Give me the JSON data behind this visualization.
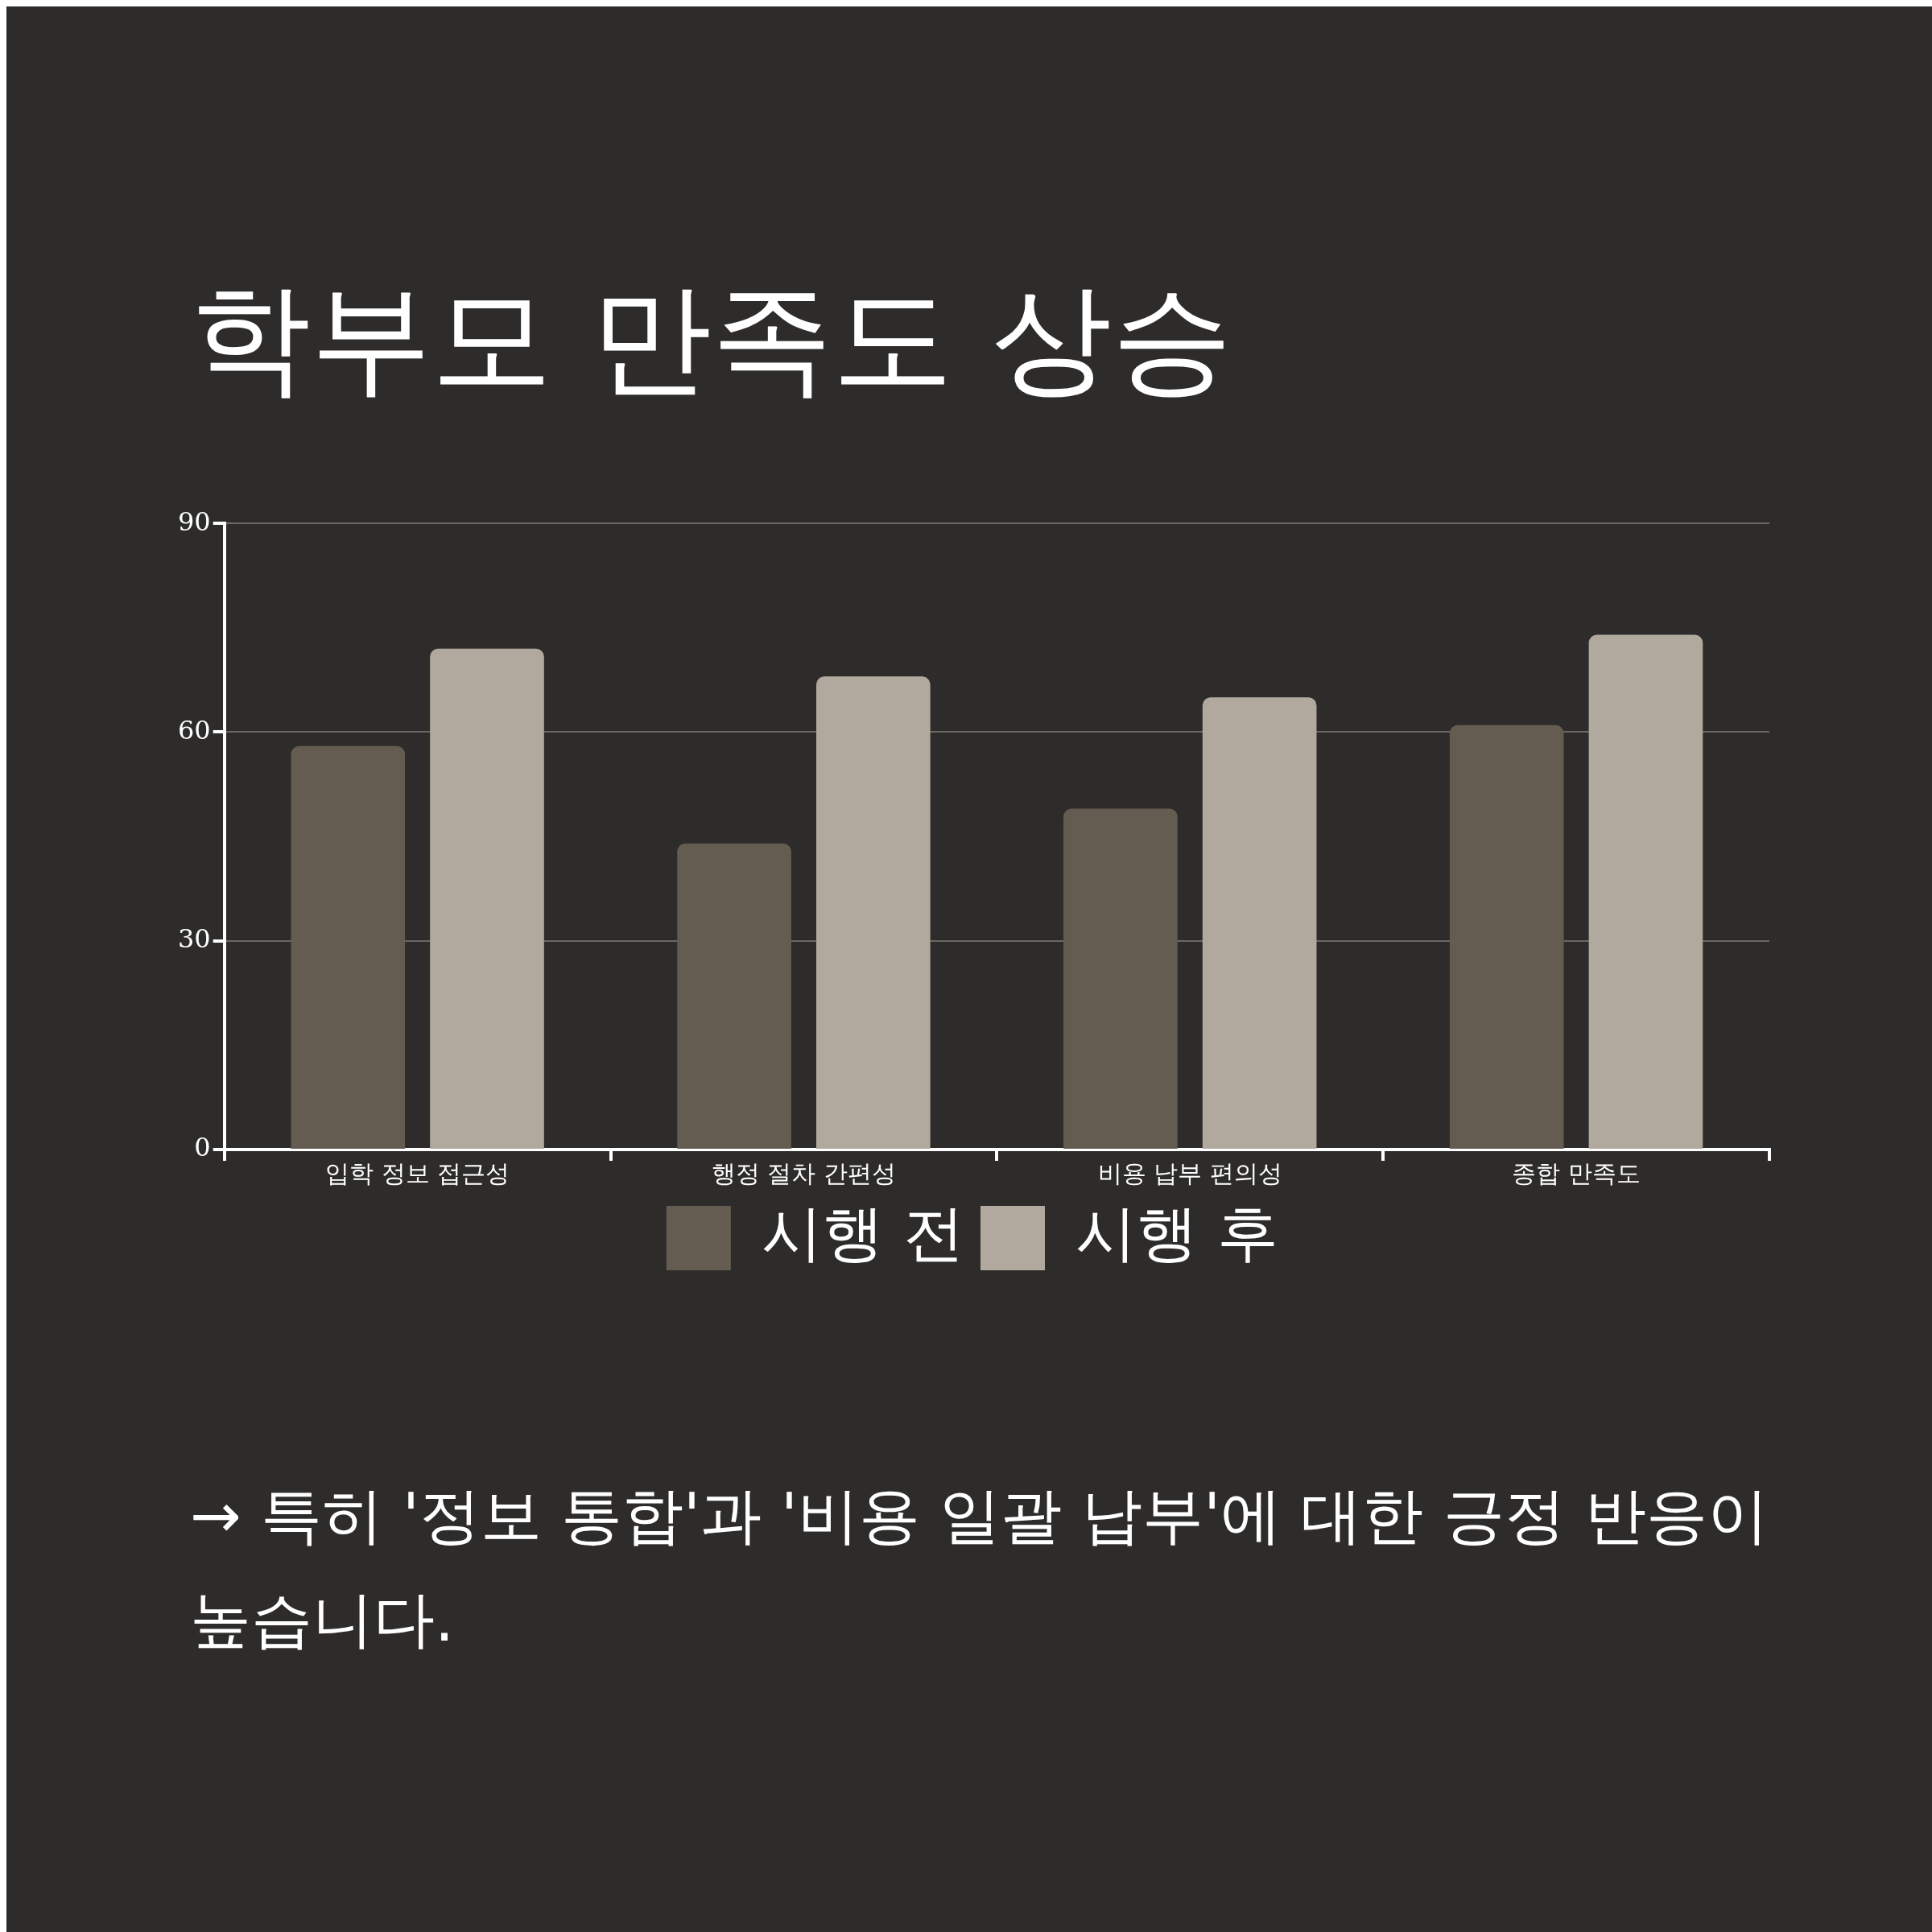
{
  "chart_data": {
    "type": "bar",
    "title": "학부모 만족도 상승",
    "categories": [
      "입학 정보 접근성",
      "행정 절차 간편성",
      "비용 납부 편의성",
      "종합 만족도"
    ],
    "series": [
      {
        "name": "시행 전",
        "color": "#645c51",
        "values": [
          58,
          44,
          49,
          61
        ]
      },
      {
        "name": "시행 후",
        "color": "#b1a99d",
        "values": [
          72,
          68,
          65,
          74
        ]
      }
    ],
    "ylim": [
      0,
      90
    ],
    "yticks": [
      0,
      30,
      60,
      90
    ],
    "grid": "y",
    "legend": "bottom",
    "annotations": [
      "→ 특히 '정보 통합'과 '비용 일괄 납부'에 대한 긍정 반응이 높습니다."
    ]
  }
}
